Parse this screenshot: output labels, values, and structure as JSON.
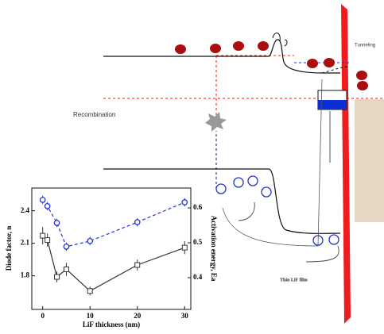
{
  "chart_data": {
    "type": "line",
    "xlabel": "LiF thickness (nm)",
    "ylabel": "Diode factor, n",
    "y2label": "Activation energy, Ea",
    "x": [
      0,
      1,
      3,
      5,
      10,
      20,
      30
    ],
    "series": [
      {
        "color": "#333333",
        "marker": "square",
        "values": [
          2.17,
          2.13,
          1.79,
          1.86,
          1.66,
          1.9,
          2.06
        ],
        "errors": [
          0.08,
          0.06,
          0.05,
          0.06,
          0.04,
          0.05,
          0.06
        ]
      },
      {
        "color": "#2233cc",
        "marker": "circle",
        "axis": "y2",
        "dashed": true,
        "values": [
          0.623,
          0.605,
          0.557,
          0.489,
          0.505,
          0.559,
          0.616
        ],
        "errors": [
          0.012,
          0.012,
          0.012,
          0.012,
          0.012,
          0.012,
          0.012
        ]
      }
    ],
    "xlim": [
      -2.3,
      31.3
    ],
    "xticks": [
      0,
      10,
      20,
      30
    ],
    "ylim": [
      1.49,
      2.61
    ],
    "yticks": [
      1.8,
      2.1,
      2.4
    ],
    "y2lim": [
      0.309,
      0.657
    ],
    "y2ticks": [
      0.4,
      0.5,
      0.6
    ]
  },
  "labels": {
    "recombination": "Recombination",
    "tunneling": "Tunneling",
    "film": "Thin LiF film"
  }
}
